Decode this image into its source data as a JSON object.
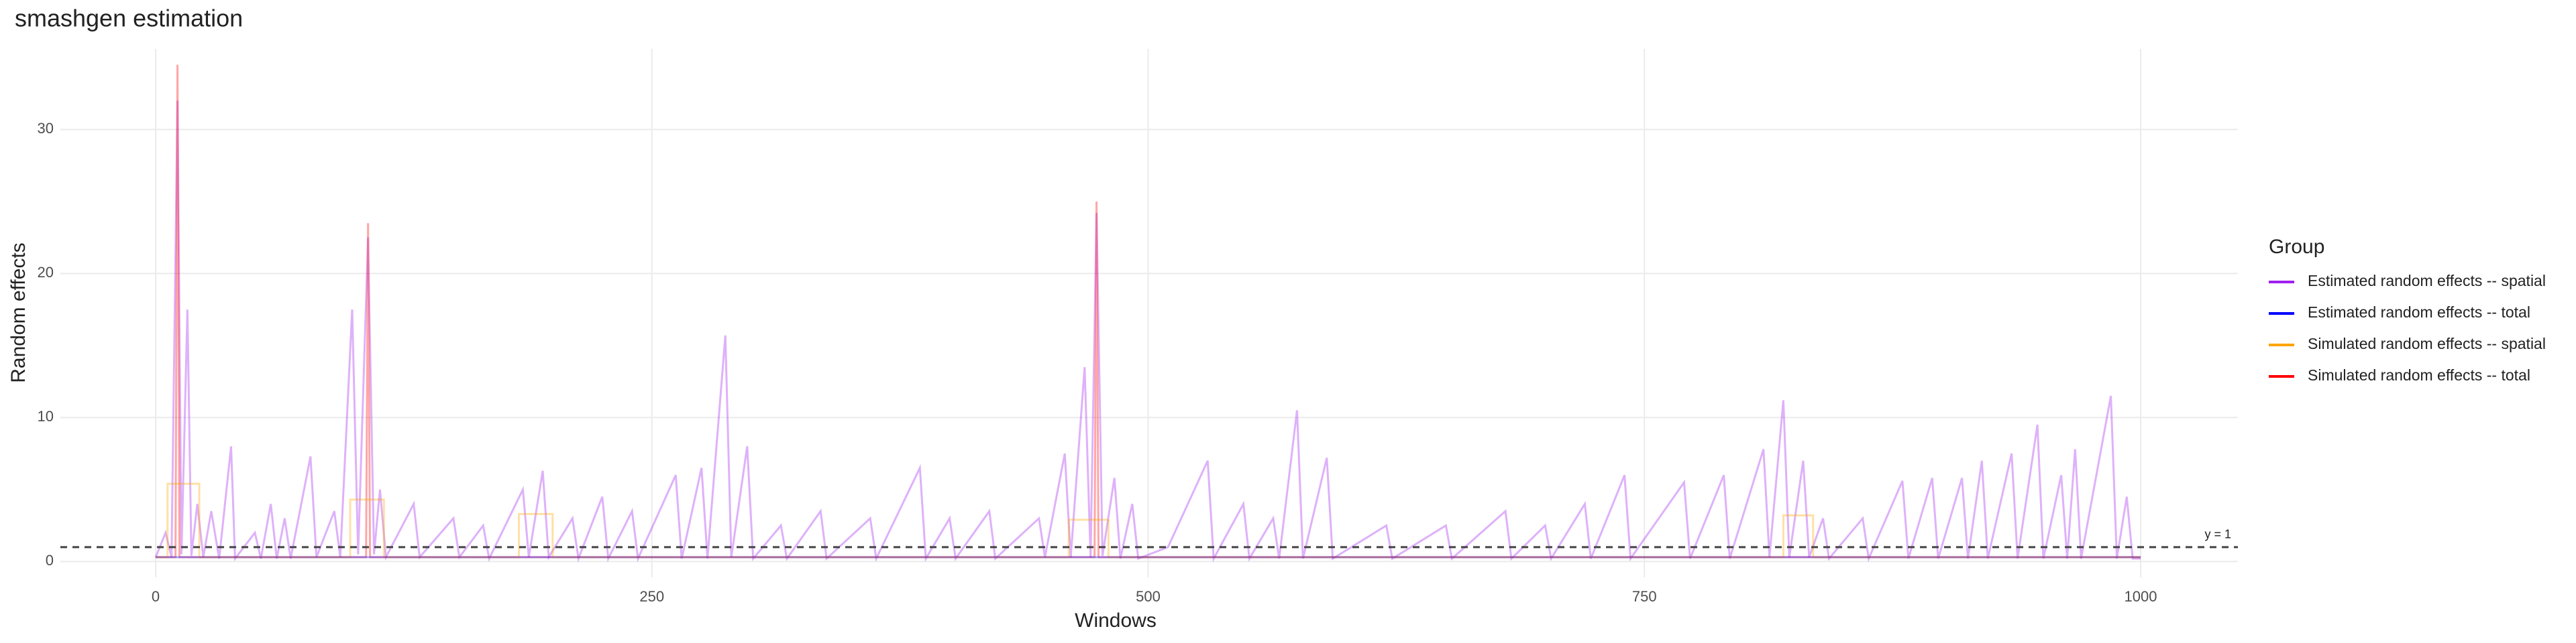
{
  "chart_data": {
    "type": "line",
    "title": "smashgen estimation",
    "xlabel": "Windows",
    "ylabel": "Random effects",
    "xlim": [
      -48,
      1049
    ],
    "ylim": [
      -1.1,
      35.6
    ],
    "xticks": [
      0,
      250,
      500,
      750,
      1000
    ],
    "yticks": [
      0,
      10,
      20,
      30
    ],
    "grid": true,
    "legend_title": "Group",
    "legend": "right",
    "hline": {
      "value": 1,
      "label": "y = 1"
    },
    "series": [
      {
        "name": "Estimated random effects -- spatial",
        "color": "#a020f0",
        "x": [
          0,
          5,
          8,
          11,
          13,
          16,
          18,
          21,
          24,
          28,
          32,
          38,
          40,
          50,
          53,
          58,
          61,
          65,
          68,
          78,
          81,
          90,
          93,
          99,
          102,
          107,
          110,
          113,
          116,
          130,
          133,
          150,
          153,
          165,
          168,
          185,
          188,
          195,
          198,
          210,
          213,
          225,
          228,
          240,
          243,
          262,
          265,
          275,
          278,
          287,
          290,
          298,
          301,
          315,
          318,
          335,
          338,
          360,
          363,
          385,
          388,
          400,
          403,
          420,
          423,
          445,
          448,
          458,
          461,
          468,
          471,
          474,
          477,
          483,
          486,
          492,
          495,
          510,
          530,
          533,
          548,
          551,
          563,
          566,
          575,
          578,
          590,
          593,
          620,
          623,
          650,
          653,
          680,
          683,
          700,
          703,
          720,
          723,
          740,
          743,
          770,
          773,
          790,
          793,
          810,
          813,
          820,
          823,
          830,
          833,
          840,
          843,
          860,
          863,
          880,
          883,
          895,
          898,
          910,
          913,
          920,
          923,
          935,
          938,
          948,
          951,
          960,
          963,
          967,
          970,
          985,
          988,
          993,
          996,
          1000
        ],
        "values": [
          0.3,
          2,
          0.3,
          32,
          0.5,
          17.5,
          0.4,
          4,
          0.3,
          3.5,
          0.2,
          8,
          0.2,
          2,
          0.2,
          4,
          0.2,
          3,
          0.2,
          7.3,
          0.3,
          3.5,
          0.3,
          17.5,
          0.5,
          22.5,
          0.5,
          5,
          0.3,
          4,
          0.3,
          3,
          0.3,
          2.5,
          0.2,
          5,
          0.3,
          6.3,
          0.3,
          3,
          0.2,
          4.5,
          0.2,
          3.5,
          0.2,
          6,
          0.2,
          6.5,
          0.2,
          15.7,
          0.3,
          8,
          0.2,
          2.5,
          0.2,
          3.5,
          0.2,
          3,
          0.2,
          6.5,
          0.2,
          3,
          0.2,
          3.5,
          0.2,
          3,
          0.3,
          7.5,
          0.3,
          13.5,
          0.3,
          24.2,
          0.4,
          5.8,
          0.2,
          4,
          0.2,
          1,
          7,
          0.2,
          4,
          0.2,
          3,
          0.2,
          10.5,
          0.2,
          7.2,
          0.2,
          2.5,
          0.2,
          2.5,
          0.2,
          3.5,
          0.2,
          2.5,
          0.2,
          4,
          0.2,
          6,
          0.2,
          5.5,
          0.2,
          6,
          0.2,
          7.8,
          0.3,
          11.2,
          0.3,
          7,
          0.3,
          3,
          0.2,
          3,
          0.2,
          5.6,
          0.2,
          5.8,
          0.2,
          5.8,
          0.2,
          7,
          0.2,
          7.5,
          0.2,
          9.5,
          0.2,
          6,
          0.2,
          7.8,
          0.2,
          11.5,
          0.2,
          4.5,
          0.2,
          0.2
        ]
      },
      {
        "name": "Estimated random effects -- total",
        "color": "#0000ff",
        "x": [
          0,
          1000
        ],
        "values": [
          0.3,
          0.3
        ]
      },
      {
        "name": "Simulated random effects -- spatial",
        "color": "#ffa500",
        "x": [
          0,
          6,
          6,
          22,
          22,
          98,
          98,
          115,
          115,
          183,
          183,
          200,
          200,
          460,
          460,
          480,
          480,
          820,
          820,
          835,
          835,
          1000
        ],
        "values": [
          0.3,
          0.3,
          5.4,
          5.4,
          0.3,
          0.3,
          4.3,
          4.3,
          0.3,
          0.3,
          3.3,
          3.3,
          0.3,
          0.3,
          2.9,
          2.9,
          0.3,
          0.3,
          3.2,
          3.2,
          0.3,
          0.3
        ]
      },
      {
        "name": "Simulated random effects -- total",
        "color": "#ff0000",
        "x": [
          0,
          10,
          11,
          12,
          106,
          107,
          108,
          473,
          474,
          475,
          1000
        ],
        "values": [
          0.3,
          0.3,
          34.5,
          0.3,
          0.3,
          23.5,
          0.3,
          0.3,
          25,
          0.3,
          0.3
        ]
      }
    ]
  }
}
